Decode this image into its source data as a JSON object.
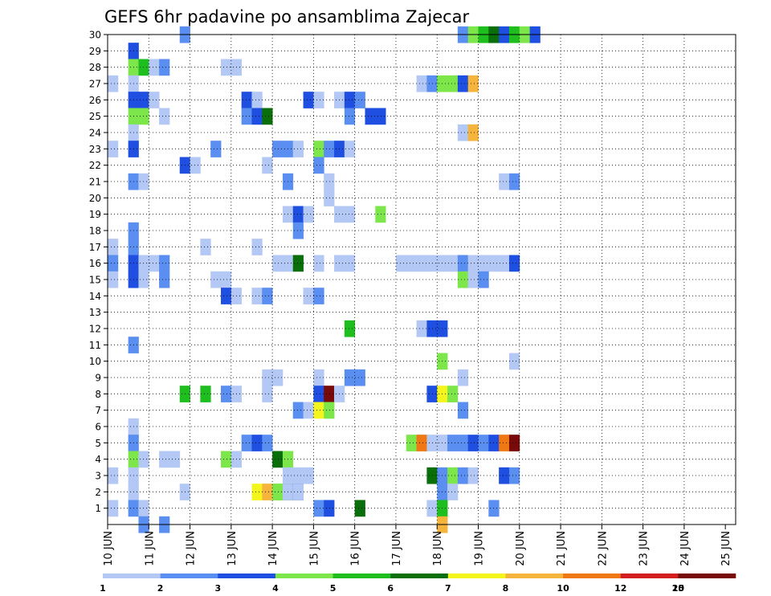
{
  "chart_data": {
    "type": "heatmap",
    "title": "GEFS 6hr padavine po ansamblima Zajecar",
    "xlabel": "",
    "ylabel": "",
    "x_tick_labels": [
      "10 JUN",
      "11 JUN",
      "12 JUN",
      "13 JUN",
      "14 JUN",
      "15 JUN",
      "16 JUN",
      "17 JUN",
      "18 JUN",
      "19 JUN",
      "20 JUN",
      "21 JUN",
      "22 JUN",
      "23 JUN",
      "24 JUN",
      "25 JUN"
    ],
    "y_tick_labels": [
      "1",
      "2",
      "3",
      "4",
      "5",
      "6",
      "7",
      "8",
      "9",
      "10",
      "11",
      "12",
      "13",
      "14",
      "15",
      "16",
      "17",
      "18",
      "19",
      "20",
      "21",
      "22",
      "23",
      "24",
      "25",
      "26",
      "27",
      "28",
      "29",
      "30"
    ],
    "time_steps_per_day": 4,
    "num_time_steps": 61,
    "num_members": 30,
    "grid": true,
    "legend": {
      "position": "bottom",
      "bounds": [
        "1",
        "2",
        "3",
        "4",
        "5",
        "6",
        "7",
        "8",
        "10",
        "12",
        "15",
        "20"
      ],
      "colors": [
        "#b4c8f5",
        "#5a8ef0",
        "#1e4fe0",
        "#7ce64a",
        "#1ebe1e",
        "#0a6e0a",
        "#f5f51e",
        "#f5b43c",
        "#f07814",
        "#d21e1e",
        "#780a0a"
      ]
    },
    "cells": [
      [
        7,
        30,
        2
      ],
      [
        34,
        30,
        2
      ],
      [
        35,
        30,
        4
      ],
      [
        36,
        30,
        5
      ],
      [
        37,
        30,
        6
      ],
      [
        38,
        30,
        3
      ],
      [
        39,
        30,
        5
      ],
      [
        40,
        30,
        4
      ],
      [
        41,
        30,
        3
      ],
      [
        2,
        29,
        3
      ],
      [
        2,
        28,
        4
      ],
      [
        3,
        28,
        5
      ],
      [
        4,
        28,
        1
      ],
      [
        5,
        28,
        2
      ],
      [
        11,
        28,
        1
      ],
      [
        12,
        28,
        1
      ],
      [
        0,
        27,
        1
      ],
      [
        2,
        27,
        1
      ],
      [
        30,
        27,
        1
      ],
      [
        31,
        27,
        2
      ],
      [
        32,
        27,
        4
      ],
      [
        33,
        27,
        4
      ],
      [
        34,
        27,
        3
      ],
      [
        35,
        27,
        8
      ],
      [
        2,
        26,
        3
      ],
      [
        3,
        26,
        3
      ],
      [
        4,
        26,
        1
      ],
      [
        13,
        26,
        3
      ],
      [
        14,
        26,
        1
      ],
      [
        19,
        26,
        3
      ],
      [
        20,
        26,
        1
      ],
      [
        22,
        26,
        1
      ],
      [
        23,
        26,
        3
      ],
      [
        24,
        26,
        2
      ],
      [
        2,
        25,
        4
      ],
      [
        3,
        25,
        4
      ],
      [
        5,
        25,
        1
      ],
      [
        13,
        25,
        2
      ],
      [
        14,
        25,
        3
      ],
      [
        15,
        25,
        6
      ],
      [
        23,
        25,
        2
      ],
      [
        25,
        25,
        3
      ],
      [
        26,
        25,
        3
      ],
      [
        2,
        24,
        1
      ],
      [
        34,
        24,
        1
      ],
      [
        35,
        24,
        8
      ],
      [
        0,
        23,
        1
      ],
      [
        2,
        23,
        3
      ],
      [
        10,
        23,
        2
      ],
      [
        16,
        23,
        2
      ],
      [
        17,
        23,
        2
      ],
      [
        18,
        23,
        1
      ],
      [
        20,
        23,
        4
      ],
      [
        21,
        23,
        2
      ],
      [
        22,
        23,
        3
      ],
      [
        23,
        23,
        1
      ],
      [
        7,
        22,
        3
      ],
      [
        8,
        22,
        1
      ],
      [
        15,
        22,
        1
      ],
      [
        20,
        22,
        2
      ],
      [
        2,
        21,
        2
      ],
      [
        3,
        21,
        1
      ],
      [
        17,
        21,
        2
      ],
      [
        21,
        21,
        1
      ],
      [
        38,
        21,
        1
      ],
      [
        39,
        21,
        2
      ],
      [
        21,
        20,
        1
      ],
      [
        17,
        19,
        1
      ],
      [
        18,
        19,
        3
      ],
      [
        19,
        19,
        1
      ],
      [
        22,
        19,
        1
      ],
      [
        23,
        19,
        1
      ],
      [
        26,
        19,
        4
      ],
      [
        2,
        18,
        2
      ],
      [
        18,
        18,
        2
      ],
      [
        0,
        17,
        1
      ],
      [
        2,
        17,
        2
      ],
      [
        9,
        17,
        1
      ],
      [
        14,
        17,
        1
      ],
      [
        0,
        16,
        2
      ],
      [
        2,
        16,
        3
      ],
      [
        3,
        16,
        1
      ],
      [
        4,
        16,
        1
      ],
      [
        5,
        16,
        2
      ],
      [
        16,
        16,
        1
      ],
      [
        17,
        16,
        1
      ],
      [
        18,
        16,
        6
      ],
      [
        20,
        16,
        1
      ],
      [
        22,
        16,
        1
      ],
      [
        23,
        16,
        1
      ],
      [
        28,
        16,
        1
      ],
      [
        29,
        16,
        1
      ],
      [
        30,
        16,
        1
      ],
      [
        31,
        16,
        1
      ],
      [
        32,
        16,
        1
      ],
      [
        33,
        16,
        1
      ],
      [
        34,
        16,
        2
      ],
      [
        35,
        16,
        1
      ],
      [
        36,
        16,
        1
      ],
      [
        37,
        16,
        1
      ],
      [
        38,
        16,
        1
      ],
      [
        39,
        16,
        3
      ],
      [
        0,
        15,
        1
      ],
      [
        2,
        15,
        3
      ],
      [
        3,
        15,
        1
      ],
      [
        5,
        15,
        2
      ],
      [
        10,
        15,
        1
      ],
      [
        11,
        15,
        1
      ],
      [
        34,
        15,
        4
      ],
      [
        35,
        15,
        1
      ],
      [
        36,
        15,
        2
      ],
      [
        11,
        14,
        3
      ],
      [
        12,
        14,
        1
      ],
      [
        14,
        14,
        1
      ],
      [
        15,
        14,
        2
      ],
      [
        19,
        14,
        1
      ],
      [
        20,
        14,
        2
      ],
      [
        30,
        12,
        1
      ],
      [
        31,
        12,
        3
      ],
      [
        32,
        12,
        3
      ],
      [
        23,
        12,
        5
      ],
      [
        2,
        11,
        2
      ],
      [
        32,
        10,
        4
      ],
      [
        39,
        10,
        1
      ],
      [
        15,
        9,
        1
      ],
      [
        16,
        9,
        1
      ],
      [
        20,
        9,
        1
      ],
      [
        23,
        9,
        2
      ],
      [
        24,
        9,
        2
      ],
      [
        34,
        9,
        1
      ],
      [
        7,
        8,
        5
      ],
      [
        9,
        8,
        5
      ],
      [
        11,
        8,
        2
      ],
      [
        12,
        8,
        1
      ],
      [
        15,
        8,
        1
      ],
      [
        20,
        8,
        3
      ],
      [
        21,
        8,
        11
      ],
      [
        22,
        8,
        1
      ],
      [
        31,
        8,
        3
      ],
      [
        32,
        8,
        7
      ],
      [
        33,
        8,
        4
      ],
      [
        18,
        7,
        2
      ],
      [
        19,
        7,
        1
      ],
      [
        20,
        7,
        7
      ],
      [
        21,
        7,
        4
      ],
      [
        34,
        7,
        2
      ],
      [
        2,
        6,
        1
      ],
      [
        2,
        5,
        2
      ],
      [
        13,
        5,
        2
      ],
      [
        14,
        5,
        3
      ],
      [
        15,
        5,
        2
      ],
      [
        29,
        5,
        4
      ],
      [
        30,
        5,
        9
      ],
      [
        31,
        5,
        1
      ],
      [
        32,
        5,
        1
      ],
      [
        33,
        5,
        2
      ],
      [
        34,
        5,
        2
      ],
      [
        35,
        5,
        3
      ],
      [
        36,
        5,
        2
      ],
      [
        37,
        5,
        3
      ],
      [
        38,
        5,
        9
      ],
      [
        39,
        5,
        11
      ],
      [
        2,
        4,
        4
      ],
      [
        3,
        4,
        1
      ],
      [
        5,
        4,
        1
      ],
      [
        6,
        4,
        1
      ],
      [
        11,
        4,
        4
      ],
      [
        12,
        4,
        1
      ],
      [
        16,
        4,
        6
      ],
      [
        17,
        4,
        4
      ],
      [
        0,
        3,
        1
      ],
      [
        2,
        3,
        1
      ],
      [
        17,
        3,
        1
      ],
      [
        18,
        3,
        1
      ],
      [
        19,
        3,
        1
      ],
      [
        31,
        3,
        6
      ],
      [
        32,
        3,
        2
      ],
      [
        33,
        3,
        4
      ],
      [
        34,
        3,
        2
      ],
      [
        35,
        3,
        1
      ],
      [
        38,
        3,
        3
      ],
      [
        39,
        3,
        2
      ],
      [
        2,
        2,
        1
      ],
      [
        7,
        2,
        1
      ],
      [
        14,
        2,
        7
      ],
      [
        15,
        2,
        8
      ],
      [
        16,
        2,
        4
      ],
      [
        17,
        2,
        5
      ],
      [
        16,
        2,
        4
      ],
      [
        17,
        2,
        1
      ],
      [
        18,
        2,
        3
      ],
      [
        18,
        2,
        1
      ],
      [
        32,
        2,
        2
      ],
      [
        33,
        2,
        1
      ],
      [
        0,
        1,
        1
      ],
      [
        2,
        1,
        2
      ],
      [
        3,
        1,
        1
      ],
      [
        20,
        1,
        2
      ],
      [
        21,
        1,
        3
      ],
      [
        24,
        1,
        6
      ],
      [
        31,
        1,
        1
      ],
      [
        32,
        1,
        5
      ],
      [
        37,
        1,
        2
      ],
      [
        3,
        0,
        2
      ],
      [
        5,
        0,
        2
      ],
      [
        32,
        0,
        8
      ]
    ]
  }
}
